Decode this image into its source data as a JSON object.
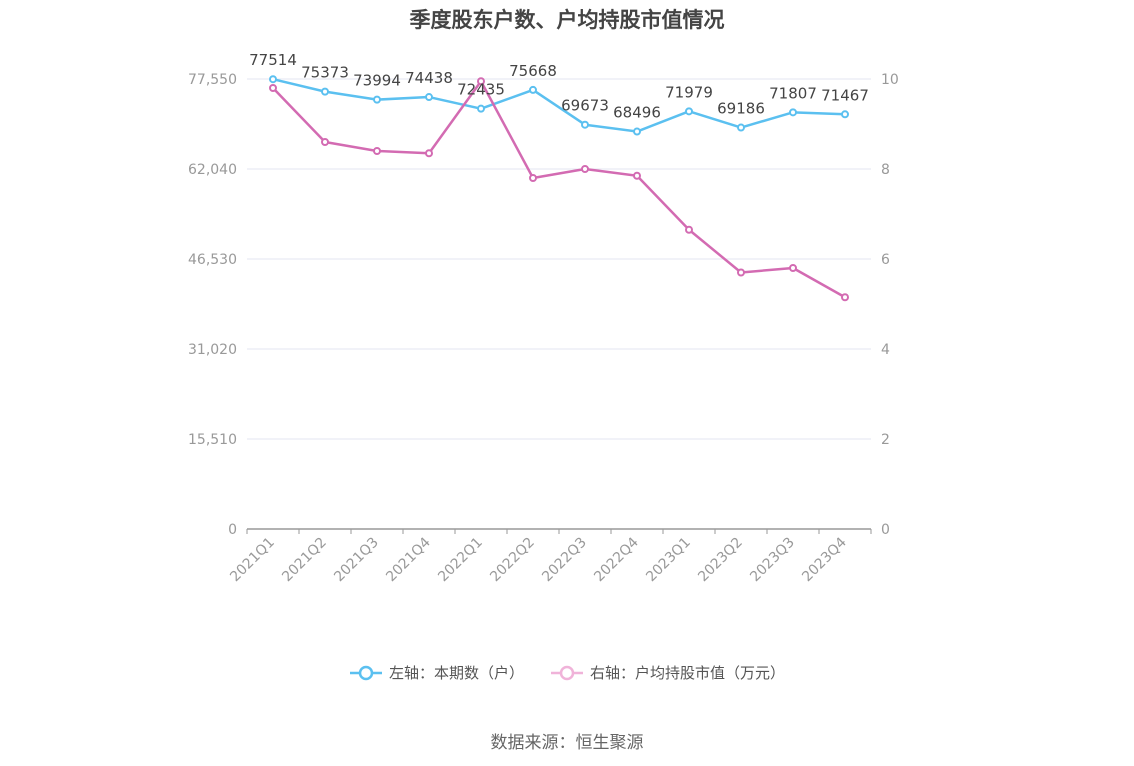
{
  "chart_data": {
    "type": "line",
    "title": "季度股东户数、户均持股市值情况",
    "categories": [
      "2021Q1",
      "2021Q2",
      "2021Q3",
      "2021Q4",
      "2022Q1",
      "2022Q2",
      "2022Q3",
      "2022Q4",
      "2023Q1",
      "2023Q2",
      "2023Q3",
      "2023Q4"
    ],
    "series": [
      {
        "name": "左轴：本期数（户）",
        "axis": "left",
        "color": "#5bc0f0",
        "values": [
          77514,
          75373,
          73994,
          74438,
          72435,
          75668,
          69673,
          68496,
          71979,
          69186,
          71807,
          71467
        ],
        "labels": [
          "77514",
          "75373",
          "73994",
          "74438",
          "72435",
          "75668",
          "69673",
          "68496",
          "71979",
          "69186",
          "71807",
          "71467"
        ]
      },
      {
        "name": "右轴：户均持股市值（万元）",
        "axis": "right",
        "color": "#d36bb2",
        "values": [
          9.8,
          8.6,
          8.4,
          8.35,
          9.95,
          7.8,
          8.0,
          7.85,
          6.65,
          5.7,
          5.8,
          5.15
        ]
      }
    ],
    "left_axis": {
      "ylim": [
        0,
        77550
      ],
      "ticks": [
        "0",
        "15,510",
        "31,020",
        "46,530",
        "62,040",
        "77,550"
      ]
    },
    "right_axis": {
      "ylim": [
        0,
        10
      ],
      "ticks": [
        "0",
        "2",
        "4",
        "6",
        "8",
        "10"
      ]
    },
    "grid": true,
    "legend_position": "bottom"
  },
  "source": "数据来源：恒生聚源"
}
